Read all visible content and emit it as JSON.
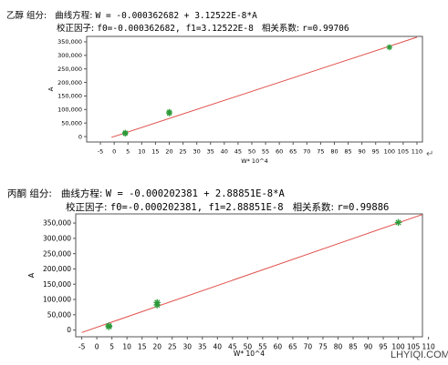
{
  "return_mark": "↵",
  "watermark": "LHYIQI.COM",
  "chart_data": [
    {
      "type": "scatter",
      "component_label": "乙醇 组分:",
      "equation_label": "曲线方程:",
      "equation": "W = -0.000362682 + 3.12522E-8*A",
      "calibration_label": "校正因子:",
      "calibration": "f0=-0.000362682, f1=3.12522E-8",
      "correlation_label": "相关系数:",
      "correlation": "r=0.99706",
      "xlabel": "W* 10^4",
      "ylabel": "A",
      "xlim": [
        -10,
        112
      ],
      "ylim": [
        -20000,
        370000
      ],
      "x_ticks": [
        "-5",
        "0",
        "5",
        "10",
        "15",
        "20",
        "25",
        "30",
        "35",
        "40",
        "45",
        "50",
        "55",
        "60",
        "65",
        "70",
        "75",
        "80",
        "85",
        "90",
        "95",
        "100",
        "105",
        "110"
      ],
      "y_ticks": [
        "0",
        "50,000",
        "100,000",
        "150,000",
        "200,000",
        "250,000",
        "300,000",
        "350,000"
      ],
      "fit_line": {
        "x": [
          -1,
          110
        ],
        "y": [
          -3000,
          367000
        ]
      },
      "series": [
        {
          "x": [
            4,
            4,
            20,
            20,
            100
          ],
          "y": [
            14000,
            11000,
            91000,
            86000,
            330000
          ]
        }
      ],
      "colors": {
        "line": "#e0504a",
        "point": "#2e9a3a"
      }
    },
    {
      "type": "scatter",
      "component_label": "丙酮 组分:",
      "equation_label": "曲线方程:",
      "equation": "W = -0.000202381 + 2.88851E-8*A",
      "calibration_label": "校正因子:",
      "calibration": "f0=-0.000202381, f1=2.88851E-8",
      "correlation_label": "相关系数:",
      "correlation": "r=0.99886",
      "xlabel": "W* 10^4",
      "ylabel": "A",
      "xlim": [
        -7,
        108
      ],
      "ylim": [
        -22000,
        380000
      ],
      "x_ticks": [
        "-5",
        "0",
        "5",
        "10",
        "15",
        "20",
        "25",
        "30",
        "35",
        "40",
        "45",
        "50",
        "55",
        "60",
        "65",
        "70",
        "75",
        "80",
        "85",
        "90",
        "95",
        "100",
        "105",
        "110"
      ],
      "y_ticks": [
        "0",
        "50,000",
        "100,000",
        "150,000",
        "200,000",
        "250,000",
        "300,000",
        "350,000"
      ],
      "fit_line": {
        "x": [
          -5,
          110
        ],
        "y": [
          -8000,
          385000
        ]
      },
      "series": [
        {
          "x": [
            4,
            4,
            20,
            20,
            100
          ],
          "y": [
            14000,
            11000,
            90000,
            82000,
            352000
          ]
        }
      ],
      "colors": {
        "line": "#e0504a",
        "point": "#2e9a3a"
      }
    }
  ]
}
